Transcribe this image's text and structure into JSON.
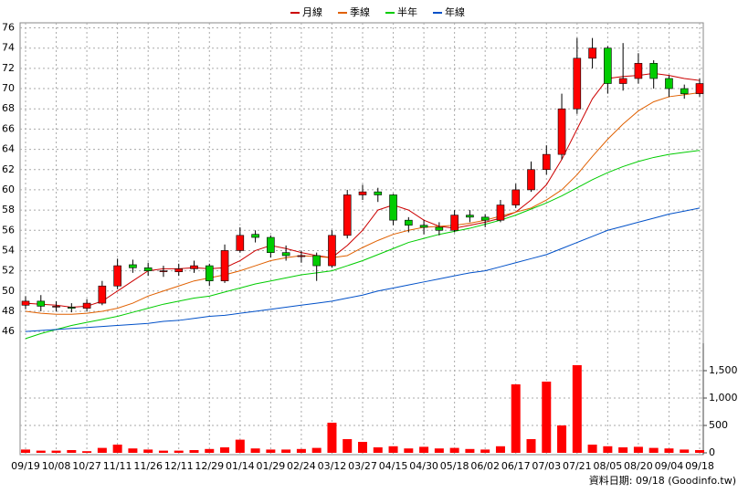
{
  "chart_data": [
    {
      "type": "candlestick",
      "categories": [
        "09/19",
        null,
        "10/08",
        null,
        "10/27",
        null,
        "11/11",
        null,
        "11/26",
        null,
        "12/11",
        null,
        "12/29",
        null,
        "01/14",
        null,
        "01/29",
        null,
        "02/24",
        null,
        "03/12",
        null,
        "03/27",
        null,
        "04/15",
        null,
        "04/30",
        null,
        "05/18",
        null,
        "06/02",
        null,
        "06/17",
        null,
        "07/03",
        null,
        "07/21",
        null,
        "08/05",
        null,
        "08/20",
        null,
        "09/04",
        null,
        "09/18"
      ],
      "open": [
        48.6,
        49,
        48.5,
        48.4,
        48.3,
        48.8,
        50.5,
        52.6,
        52.3,
        52,
        51.9,
        52.2,
        52.5,
        51,
        54,
        55.6,
        55.3,
        53.8,
        53.4,
        53.5,
        52.5,
        55.5,
        59.5,
        59.8,
        59.5,
        57,
        56.5,
        56.3,
        56,
        57.5,
        57.3,
        57,
        58.5,
        60,
        62,
        63.5,
        68,
        73,
        74,
        70.5,
        71,
        72.5,
        71,
        70,
        69.5
      ],
      "high": [
        49.5,
        49.6,
        49,
        48.8,
        49.2,
        51,
        53.2,
        53.1,
        52.8,
        52.5,
        52.7,
        53,
        52.7,
        54.6,
        56.3,
        56,
        55.5,
        54.5,
        54,
        53.8,
        56,
        60,
        60.5,
        60.2,
        59.6,
        57.3,
        57,
        56.8,
        58,
        58,
        57.6,
        59,
        60.6,
        62.8,
        64.4,
        69.5,
        75,
        75,
        74.2,
        74.5,
        73.5,
        72.8,
        71.3,
        70.4,
        71
      ],
      "low": [
        48.2,
        48,
        48,
        47.9,
        48,
        48.6,
        50.2,
        51.8,
        51.5,
        51.4,
        51.5,
        51.8,
        50.5,
        50.8,
        53.8,
        54.8,
        53.3,
        53,
        52.8,
        51,
        52.3,
        55.2,
        59,
        58.8,
        56.5,
        55.8,
        55.6,
        55.5,
        55.8,
        56.8,
        56.3,
        56.8,
        58.2,
        59.8,
        61.5,
        63,
        67.5,
        72,
        69.5,
        69.8,
        70.5,
        70,
        69.2,
        69,
        69.2
      ],
      "close": [
        49,
        48.5,
        48.5,
        48.3,
        48.8,
        50.5,
        52.5,
        52.3,
        52,
        52,
        52.2,
        52.5,
        51,
        54,
        55.5,
        55.3,
        53.8,
        53.5,
        53.5,
        52.5,
        55.5,
        59.5,
        59.8,
        59.5,
        57,
        56.5,
        56.3,
        56,
        57.5,
        57.3,
        57,
        58.5,
        60,
        62,
        63.5,
        68,
        73,
        74,
        70.5,
        71,
        72.5,
        71,
        70,
        69.5,
        70.5
      ],
      "up_color": "#ff0000",
      "down_color": "#00cc00",
      "series": [
        {
          "name": "月線",
          "color": "#cc0000",
          "values": [
            48.8,
            48.7,
            48.6,
            48.4,
            48.5,
            49,
            50,
            51,
            52,
            52.2,
            52.2,
            52.3,
            52.2,
            52.3,
            53,
            54,
            54.5,
            54.2,
            53.8,
            53.5,
            53.3,
            54.5,
            56,
            58,
            58.5,
            58,
            57,
            56.4,
            56.2,
            56.5,
            56.8,
            57.2,
            57.8,
            59,
            60.5,
            63,
            66,
            69,
            71,
            71.2,
            71.3,
            71.5,
            71.3,
            71,
            70.8
          ]
        },
        {
          "name": "季線",
          "color": "#e06000",
          "values": [
            48,
            47.8,
            47.7,
            47.7,
            47.8,
            48,
            48.3,
            48.8,
            49.5,
            50,
            50.5,
            51,
            51.3,
            51.6,
            52,
            52.5,
            53,
            53.3,
            53.5,
            53.4,
            53.3,
            53.5,
            54.3,
            55,
            55.6,
            56,
            56.3,
            56.4,
            56.5,
            56.7,
            57,
            57.4,
            57.8,
            58.2,
            59,
            60,
            61.5,
            63.3,
            65,
            66.5,
            67.8,
            68.7,
            69.2,
            69.4,
            69.6
          ]
        },
        {
          "name": "半年",
          "color": "#00cc00",
          "values": [
            45.3,
            45.8,
            46.2,
            46.6,
            46.9,
            47.2,
            47.5,
            47.9,
            48.3,
            48.7,
            49,
            49.3,
            49.5,
            49.9,
            50.3,
            50.7,
            51,
            51.3,
            51.6,
            51.8,
            52,
            52.5,
            53,
            53.6,
            54.2,
            54.8,
            55.2,
            55.6,
            55.9,
            56.2,
            56.6,
            57,
            57.5,
            58.1,
            58.7,
            59.4,
            60.2,
            61,
            61.7,
            62.3,
            62.8,
            63.2,
            63.5,
            63.7,
            63.9
          ]
        },
        {
          "name": "年線",
          "color": "#0050c8",
          "values": [
            46,
            46.1,
            46.2,
            46.3,
            46.4,
            46.5,
            46.6,
            46.7,
            46.8,
            47,
            47.1,
            47.3,
            47.5,
            47.6,
            47.8,
            48,
            48.2,
            48.4,
            48.6,
            48.8,
            49,
            49.3,
            49.6,
            50,
            50.3,
            50.6,
            50.9,
            51.2,
            51.5,
            51.8,
            52,
            52.4,
            52.8,
            53.2,
            53.6,
            54.2,
            54.8,
            55.4,
            56,
            56.4,
            56.8,
            57.2,
            57.6,
            57.9,
            58.2
          ]
        }
      ],
      "ylim": [
        45.2,
        76.5
      ],
      "yticks": [
        46,
        48,
        50,
        52,
        54,
        56,
        58,
        60,
        62,
        64,
        66,
        68,
        70,
        72,
        74,
        76
      ],
      "grid": true
    },
    {
      "type": "bar",
      "color": "#ff0000",
      "values": [
        60,
        40,
        40,
        50,
        30,
        90,
        150,
        80,
        60,
        40,
        40,
        50,
        70,
        100,
        240,
        80,
        60,
        60,
        70,
        90,
        550,
        250,
        200,
        100,
        120,
        80,
        110,
        80,
        90,
        70,
        60,
        120,
        1250,
        250,
        1300,
        500,
        1600,
        150,
        120,
        100,
        110,
        90,
        80,
        60,
        50
      ],
      "ylim": [
        0,
        2000
      ],
      "yticks": [
        0,
        500,
        {
          "value": 1000,
          "label": "1,000"
        },
        {
          "value": 1500,
          "label": "1,500"
        }
      ],
      "grid": true,
      "caption": "資料日期: 09/18  (Goodinfo.tw)"
    }
  ]
}
